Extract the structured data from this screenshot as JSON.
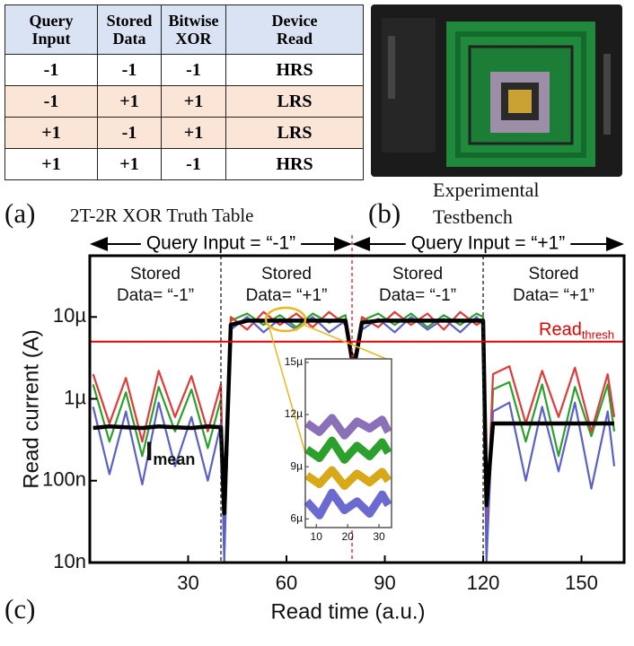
{
  "table": {
    "header": [
      "Query Input",
      "Stored Data",
      "Bitwise XOR",
      "Device Read"
    ],
    "rows": [
      [
        "-1",
        "-1",
        "-1",
        "HRS"
      ],
      [
        "-1",
        "+1",
        "+1",
        "LRS"
      ],
      [
        "+1",
        "-1",
        "+1",
        "LRS"
      ],
      [
        "+1",
        "+1",
        "-1",
        "HRS"
      ]
    ]
  },
  "caption_a": {
    "letter": "(a)",
    "text": "2T-2R XOR Truth Table"
  },
  "caption_b": {
    "letter": "(b)",
    "text": "Experimental Testbench"
  },
  "caption_c": {
    "letter": "(c)"
  },
  "chart_data": {
    "type": "line",
    "xlabel": "Read time (a.u.)",
    "ylabel": "Read current (A)",
    "xlim": [
      0,
      163
    ],
    "xticks": [
      30,
      60,
      90,
      120,
      150
    ],
    "ylim": [
      1e-08,
      5.6e-05
    ],
    "ylog": true,
    "yticks": [
      {
        "value": 1e-08,
        "label": "10n"
      },
      {
        "value": 1e-07,
        "label": "100n"
      },
      {
        "value": 1e-06,
        "label": "1µ"
      },
      {
        "value": 1e-05,
        "label": "10µ"
      }
    ],
    "dividers": [
      {
        "x": 40,
        "color": "#222222"
      },
      {
        "x": 80,
        "color": "#e02020"
      },
      {
        "x": 120,
        "color": "#222222"
      }
    ],
    "query_labels": [
      "Query Input = “-1”",
      "Query Input = “+1”"
    ],
    "stored_labels": [
      [
        "Stored",
        "Data= “-1”"
      ],
      [
        "Stored",
        "Data= “+1”"
      ],
      [
        "Stored",
        "Data= “-1”"
      ],
      [
        "Stored",
        "Data= “+1”"
      ]
    ],
    "threshold": {
      "value": 5e-06,
      "color": "#e00000",
      "label": "Read",
      "label_sub": "thresh"
    },
    "mean_label": {
      "text": "I",
      "sub": "mean"
    },
    "x": [
      1,
      6,
      11,
      16,
      21,
      26,
      31,
      36,
      40,
      41,
      43,
      48,
      53,
      58,
      63,
      68,
      73,
      78,
      80,
      81,
      83,
      88,
      93,
      98,
      103,
      108,
      113,
      118,
      120,
      121,
      123,
      128,
      133,
      138,
      143,
      148,
      153,
      158,
      160
    ],
    "series": [
      {
        "name": "green",
        "color": "#2ca02c",
        "values": [
          1.5e-06,
          3e-07,
          1.2e-06,
          2e-07,
          1.4e-06,
          4e-07,
          1.3e-06,
          2.5e-07,
          1e-06,
          1.2e-08,
          9e-06,
          1.1e-05,
          8e-06,
          1.05e-05,
          7.5e-06,
          1.1e-05,
          8.5e-06,
          1.05e-05,
          3e-06,
          3e-06,
          9e-06,
          1.1e-05,
          8e-06,
          1.1e-05,
          7.5e-06,
          1.05e-05,
          8e-06,
          1.1e-05,
          1e-05,
          1.2e-08,
          1.3e-06,
          1.6e-06,
          3e-07,
          1.5e-06,
          2e-07,
          1.4e-06,
          3.5e-07,
          1.5e-06,
          4e-07
        ]
      },
      {
        "name": "red",
        "color": "#e03a3a",
        "values": [
          2e-06,
          5e-07,
          1.8e-06,
          3e-07,
          2.2e-06,
          6e-07,
          1.9e-06,
          4e-07,
          1.5e-06,
          2e-08,
          1e-05,
          7e-06,
          1.15e-05,
          8e-06,
          1.1e-05,
          7.5e-06,
          1.15e-05,
          8e-06,
          3.5e-06,
          3.5e-06,
          1e-05,
          7.5e-06,
          1.15e-05,
          8e-06,
          1.1e-05,
          7e-06,
          1.15e-05,
          8e-06,
          9e-06,
          2e-08,
          2e-06,
          2.5e-06,
          5e-07,
          2.2e-06,
          6e-07,
          2.4e-06,
          4e-07,
          2e-06,
          6e-07
        ]
      },
      {
        "name": "blue",
        "color": "#5a60c8",
        "values": [
          8e-07,
          1.2e-07,
          7e-07,
          9e-08,
          9e-07,
          1.5e-07,
          6e-07,
          1e-07,
          5e-07,
          1e-08,
          7e-06,
          1e-05,
          6.5e-06,
          9.5e-06,
          7e-06,
          1e-05,
          6.5e-06,
          9e-06,
          2.5e-06,
          2.5e-06,
          7e-06,
          9.5e-06,
          6.5e-06,
          1e-05,
          7e-06,
          9.5e-06,
          6.5e-06,
          1e-05,
          8e-06,
          1e-08,
          7e-07,
          9e-07,
          1e-07,
          8e-07,
          1.3e-07,
          9e-07,
          8e-08,
          7e-07,
          1.5e-07
        ]
      },
      {
        "name": "mean",
        "color": "#000000",
        "values": [
          4.4e-07,
          4.6e-07,
          4.5e-07,
          4.4e-07,
          4.6e-07,
          4.5e-07,
          4.4e-07,
          4.6e-07,
          4.5e-07,
          4e-08,
          8e-06,
          9e-06,
          9e-06,
          9e-06,
          9e-06,
          9e-06,
          9e-06,
          9e-06,
          3e-06,
          3e-06,
          8.5e-06,
          9e-06,
          9e-06,
          9e-06,
          9e-06,
          9e-06,
          9e-06,
          9e-06,
          9e-06,
          5e-08,
          5e-07,
          5e-07,
          5e-07,
          5e-07,
          5e-07,
          5e-07,
          5e-07,
          5e-07,
          5e-07
        ]
      }
    ],
    "inset": {
      "xlim": [
        6.5,
        34
      ],
      "xticks": [
        10,
        20,
        30
      ],
      "ylim": [
        5.5e-06,
        1.52e-05
      ],
      "yticks": [
        {
          "value": 6e-06,
          "label": "6µ"
        },
        {
          "value": 9e-06,
          "label": "9µ"
        },
        {
          "value": 1.2e-05,
          "label": "12µ"
        },
        {
          "value": 1.5e-05,
          "label": "15µ"
        }
      ],
      "x": [
        7,
        11,
        15,
        19,
        23,
        27,
        31,
        33
      ],
      "series": [
        {
          "name": "blue",
          "color": "#6a6ad0",
          "values": [
            7e-06,
            6.2e-06,
            7.5e-06,
            6.5e-06,
            7e-06,
            6.3e-06,
            7.4e-06,
            6.8e-06
          ]
        },
        {
          "name": "yellow",
          "color": "#d8a818",
          "values": [
            8.5e-06,
            8e-06,
            8.8e-06,
            7.9e-06,
            8.6e-06,
            8.1e-06,
            8.7e-06,
            8.2e-06
          ]
        },
        {
          "name": "green",
          "color": "#2ca02c",
          "values": [
            1e-05,
            9.5e-06,
            1.05e-05,
            9.4e-06,
            1.02e-05,
            9.6e-06,
            1.04e-05,
            9.8e-06
          ]
        },
        {
          "name": "purple",
          "color": "#8a70b8",
          "values": [
            1.15e-05,
            1.1e-05,
            1.18e-05,
            1.08e-05,
            1.16e-05,
            1.12e-05,
            1.17e-05,
            1.1e-05
          ]
        }
      ]
    }
  }
}
